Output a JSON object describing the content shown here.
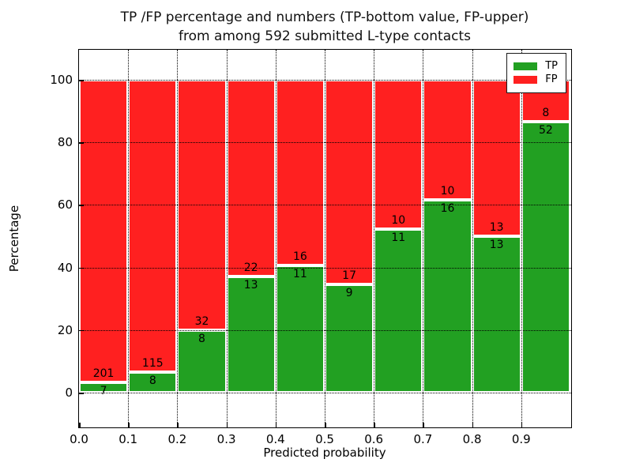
{
  "title": {
    "line1": "TP /FP percentage and numbers (TP-bottom value, FP-upper)",
    "line2": "from among 592 submitted L-type contacts"
  },
  "chart_data": {
    "type": "bar",
    "stacked": true,
    "title": "TP /FP percentage and numbers (TP-bottom value, FP-upper) from among 592 submitted L-type contacts",
    "xlabel": "Predicted probability",
    "ylabel": "Percentage",
    "total_contacts": 592,
    "bin_width": 0.1,
    "bin_starts": [
      0.0,
      0.1,
      0.2,
      0.3,
      0.4,
      0.5,
      0.6,
      0.7,
      0.8,
      0.9
    ],
    "x_tick_labels": [
      "0.0",
      "0.1",
      "0.2",
      "0.3",
      "0.4",
      "0.5",
      "0.6",
      "0.7",
      "0.8",
      "0.9"
    ],
    "y_ticks": [
      0,
      20,
      40,
      60,
      80,
      100
    ],
    "xlim": [
      0.0,
      1.0
    ],
    "ylim": [
      -10.6,
      109.6
    ],
    "grid": "dotted",
    "legend_position": "upper right",
    "series": [
      {
        "name": "TP",
        "color": "#22A022",
        "counts": [
          7,
          8,
          8,
          13,
          11,
          9,
          11,
          16,
          13,
          52
        ]
      },
      {
        "name": "FP",
        "color": "#FF2020",
        "counts": [
          201,
          115,
          32,
          22,
          16,
          17,
          10,
          10,
          13,
          8
        ]
      }
    ],
    "tp_percent": [
      3.4,
      6.5,
      20.0,
      37.1,
      40.7,
      34.6,
      52.4,
      61.5,
      50.0,
      86.7
    ],
    "fp_percent": [
      96.6,
      93.5,
      80.0,
      62.9,
      59.3,
      65.4,
      47.6,
      38.5,
      50.0,
      13.3
    ],
    "legend": [
      {
        "label": "TP",
        "color": "#22A022"
      },
      {
        "label": "FP",
        "color": "#FF2020"
      }
    ]
  },
  "colors": {
    "tp_green": "#22A022",
    "fp_red": "#FF2020",
    "grid": "#000000",
    "background": "#ffffff"
  }
}
